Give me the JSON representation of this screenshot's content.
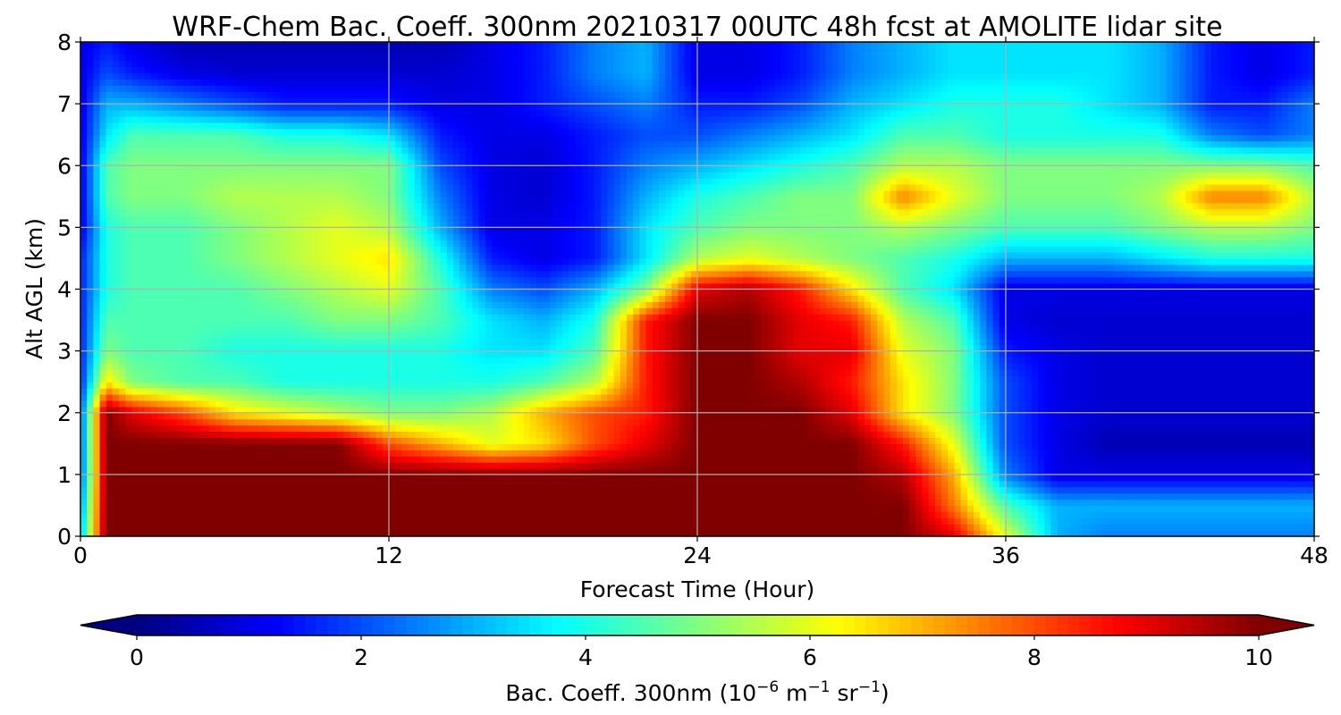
{
  "chart_data": {
    "type": "heatmap",
    "title": "WRF-Chem Bac. Coeff. 300nm  20210317 00UTC 48h fcst at AMOLITE lidar site",
    "xlabel": "Forecast Time (Hour)",
    "ylabel": "Alt AGL (km)",
    "xlim": [
      0,
      48
    ],
    "ylim": [
      0,
      8
    ],
    "x_ticks": [
      "0",
      "12",
      "24",
      "36",
      "48"
    ],
    "y_ticks": [
      "0",
      "1",
      "2",
      "3",
      "4",
      "5",
      "6",
      "7",
      "8"
    ],
    "grid": true,
    "colormap": "jet",
    "colorbar": {
      "label_main": "Bac. Coeff. 300nm  (10",
      "label_exp1": "−6",
      "label_mid": " m",
      "label_exp2": "−1",
      "label_mid2": " sr",
      "label_exp3": "−1",
      "label_end": ")",
      "range": [
        0,
        10
      ],
      "ticks": [
        "0",
        "2",
        "4",
        "6",
        "8",
        "10"
      ],
      "extend": "both"
    },
    "x": [
      0,
      1,
      2,
      4,
      6,
      8,
      10,
      12,
      14,
      16,
      18,
      20,
      22,
      24,
      26,
      28,
      30,
      32,
      34,
      36,
      38,
      40,
      42,
      44,
      46,
      48
    ],
    "y": [
      0,
      0.5,
      1,
      1.5,
      2,
      2.5,
      3,
      3.5,
      4,
      4.5,
      5,
      5.5,
      6,
      6.5,
      7,
      7.5,
      8
    ],
    "z_rows_by_altitude": [
      [
        3.0,
        10,
        10,
        10,
        10,
        10,
        10,
        10,
        10,
        10,
        10,
        10,
        10,
        10,
        10,
        10,
        10,
        10,
        9.0,
        6.0,
        3.0,
        2.5,
        2.5,
        2.5,
        2.5,
        2.5
      ],
      [
        2.5,
        10,
        10,
        10,
        10,
        10,
        10,
        10,
        10,
        10,
        10,
        10,
        10,
        10,
        10,
        10,
        10,
        10,
        7.5,
        4.5,
        3.0,
        3.0,
        3.0,
        3.0,
        3.0,
        3.0
      ],
      [
        2.0,
        10,
        10,
        10,
        10,
        10,
        10,
        10,
        10,
        10,
        10,
        10,
        10,
        10,
        10,
        10,
        10,
        9.5,
        7.0,
        2.5,
        1.0,
        1.0,
        1.0,
        1.0,
        1.0,
        1.0
      ],
      [
        2.0,
        10,
        10,
        10,
        10,
        10,
        10,
        8.0,
        7.0,
        6.0,
        6.5,
        8.0,
        9.0,
        10,
        10,
        10,
        10,
        8.5,
        6.0,
        2.0,
        1.0,
        0.5,
        0.5,
        0.5,
        0.5,
        0.5
      ],
      [
        2.0,
        10,
        9.0,
        8.0,
        6.5,
        6.0,
        5.5,
        5.0,
        5.0,
        5.5,
        7.0,
        8.0,
        8.5,
        10,
        10,
        10,
        9.0,
        6.5,
        5.0,
        2.0,
        1.0,
        0.8,
        0.8,
        0.8,
        0.8,
        0.8
      ],
      [
        1.5,
        6.5,
        5.0,
        4.5,
        4.5,
        4.0,
        4.0,
        4.0,
        4.0,
        4.0,
        4.5,
        5.5,
        8.5,
        10,
        10,
        9.5,
        8.5,
        6.5,
        5.0,
        2.0,
        1.0,
        0.8,
        0.8,
        0.8,
        0.8,
        0.8
      ],
      [
        1.5,
        5.0,
        4.5,
        4.5,
        4.0,
        4.0,
        4.0,
        4.0,
        4.0,
        3.5,
        3.5,
        4.5,
        8.5,
        10,
        10,
        9.0,
        9.0,
        6.0,
        5.0,
        1.5,
        1.0,
        0.8,
        0.8,
        0.8,
        0.8,
        0.8
      ],
      [
        1.5,
        4.5,
        4.5,
        4.5,
        4.5,
        4.5,
        5.0,
        5.0,
        4.5,
        3.5,
        3.0,
        4.0,
        8.5,
        10,
        10,
        9.0,
        8.5,
        5.5,
        4.5,
        1.0,
        0.8,
        0.8,
        0.8,
        0.8,
        0.8,
        0.8
      ],
      [
        1.5,
        4.0,
        4.5,
        4.5,
        4.5,
        5.0,
        5.5,
        6.0,
        4.5,
        2.5,
        2.0,
        3.0,
        5.0,
        9.0,
        9.5,
        8.5,
        6.5,
        4.5,
        3.5,
        1.0,
        1.0,
        1.0,
        1.0,
        1.0,
        1.0,
        1.0
      ],
      [
        1.5,
        4.0,
        4.5,
        4.5,
        5.0,
        5.5,
        6.0,
        6.5,
        4.0,
        1.5,
        1.0,
        1.5,
        3.5,
        5.5,
        6.0,
        5.5,
        5.0,
        4.5,
        4.0,
        3.0,
        3.0,
        3.0,
        3.5,
        4.0,
        4.0,
        4.0
      ],
      [
        1.0,
        4.0,
        4.5,
        4.5,
        5.0,
        5.5,
        6.0,
        5.5,
        3.0,
        1.0,
        1.0,
        1.5,
        3.5,
        4.5,
        5.0,
        5.0,
        5.0,
        5.5,
        5.0,
        4.5,
        4.5,
        4.5,
        5.0,
        5.5,
        5.5,
        5.0
      ],
      [
        1.0,
        4.5,
        5.0,
        5.0,
        5.5,
        5.5,
        5.5,
        5.0,
        2.5,
        1.0,
        0.8,
        1.5,
        3.0,
        4.0,
        4.5,
        5.0,
        5.0,
        7.5,
        6.0,
        5.0,
        5.0,
        5.0,
        5.5,
        7.5,
        7.5,
        5.5
      ],
      [
        1.0,
        4.5,
        5.0,
        5.0,
        5.0,
        5.0,
        5.0,
        5.0,
        2.0,
        1.0,
        0.8,
        1.5,
        2.5,
        3.0,
        3.5,
        4.0,
        4.5,
        5.5,
        5.5,
        5.0,
        5.0,
        5.0,
        5.0,
        5.0,
        5.0,
        4.5
      ],
      [
        1.0,
        3.5,
        4.5,
        4.5,
        4.5,
        4.0,
        4.0,
        3.5,
        1.5,
        1.0,
        1.0,
        1.5,
        2.0,
        2.0,
        2.5,
        3.0,
        3.5,
        4.5,
        4.5,
        4.0,
        4.0,
        4.0,
        4.0,
        2.5,
        2.0,
        2.5
      ],
      [
        1.0,
        3.0,
        3.0,
        2.5,
        2.0,
        1.5,
        1.5,
        1.5,
        1.0,
        1.0,
        1.5,
        2.0,
        2.5,
        1.5,
        1.5,
        2.0,
        3.0,
        3.5,
        4.0,
        4.0,
        4.0,
        3.5,
        3.0,
        1.5,
        1.5,
        2.5
      ],
      [
        1.0,
        2.0,
        1.5,
        1.0,
        0.8,
        0.8,
        0.8,
        0.8,
        0.8,
        1.0,
        1.5,
        2.5,
        3.0,
        1.0,
        1.0,
        1.5,
        2.5,
        3.0,
        3.5,
        3.5,
        3.5,
        3.5,
        3.0,
        1.5,
        1.0,
        1.5
      ],
      [
        1.0,
        1.5,
        1.0,
        0.5,
        0.5,
        0.5,
        0.5,
        0.5,
        0.5,
        1.0,
        1.5,
        2.5,
        3.0,
        1.0,
        1.0,
        1.5,
        2.5,
        3.0,
        3.5,
        3.5,
        3.5,
        3.5,
        3.0,
        1.5,
        1.0,
        1.5
      ]
    ]
  }
}
